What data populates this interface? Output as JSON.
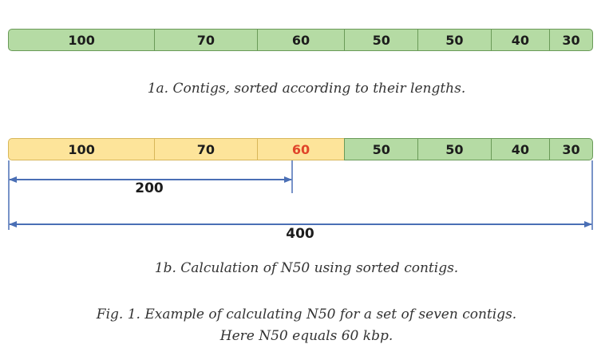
{
  "diagram_a": {
    "segments": [
      {
        "label": "100",
        "value": 100,
        "color": "green"
      },
      {
        "label": "70",
        "value": 70,
        "color": "green"
      },
      {
        "label": "60",
        "value": 60,
        "color": "green"
      },
      {
        "label": "50",
        "value": 50,
        "color": "green"
      },
      {
        "label": "50",
        "value": 50,
        "color": "green"
      },
      {
        "label": "40",
        "value": 40,
        "color": "green"
      },
      {
        "label": "30",
        "value": 30,
        "color": "green"
      }
    ],
    "caption": "1a. Contigs, sorted according to their lengths."
  },
  "diagram_b": {
    "segments": [
      {
        "label": "100",
        "value": 100,
        "color": "yellow"
      },
      {
        "label": "70",
        "value": 70,
        "color": "yellow"
      },
      {
        "label": "60",
        "value": 60,
        "color": "yellow",
        "highlight": true
      },
      {
        "label": "50",
        "value": 50,
        "color": "green"
      },
      {
        "label": "50",
        "value": 50,
        "color": "green"
      },
      {
        "label": "40",
        "value": 40,
        "color": "green"
      },
      {
        "label": "30",
        "value": 30,
        "color": "green"
      }
    ],
    "measure_half": "200",
    "measure_total": "400",
    "caption": "1b. Calculation of N50 using sorted contigs."
  },
  "figure_caption": {
    "line1": "Fig. 1. Example of calculating N50 for a set of seven contigs.",
    "line2": "Here N50 equals 60 kbp."
  },
  "colors": {
    "green": "#b5dba4",
    "yellow": "#fde49a",
    "highlight_text": "#e0452a",
    "arrow": "#4a6fb5"
  }
}
